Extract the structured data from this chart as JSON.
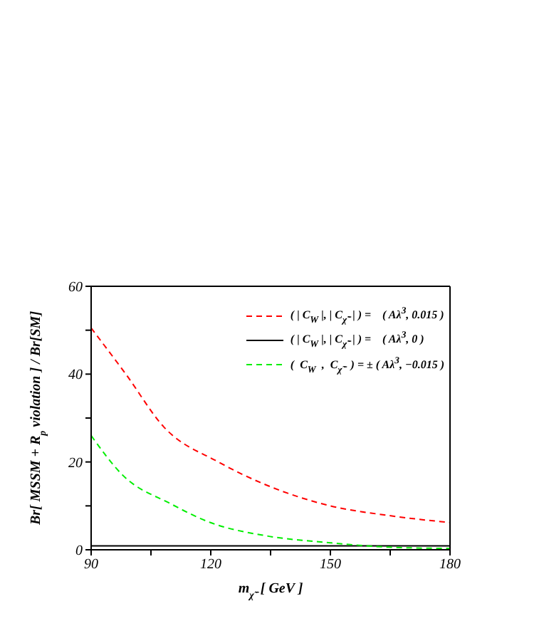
{
  "chart_data": {
    "type": "line",
    "xlabel": "m$_{χ̃⁻}$ [ GeV ]",
    "ylabel": "Br[ MSSM + R$_{p}$ violation ] / Br[SM]",
    "xlim": [
      90,
      180
    ],
    "xticks": [
      90,
      {
        "value": 105,
        "label": null
      },
      120,
      {
        "value": 135,
        "label": null
      },
      150,
      {
        "value": 165,
        "label": null
      },
      180
    ],
    "ylim": [
      0,
      60
    ],
    "yticks": [
      0,
      {
        "value": 10,
        "label": null
      },
      20,
      {
        "value": 30,
        "label": null
      },
      40,
      {
        "value": 50,
        "label": null
      },
      60
    ],
    "legend": "top right",
    "marker": "none",
    "series": [
      {
        "name": "( | C$_{W}$ |, | C$_{χ̃⁻}$ | ) =    ( Aλ$^{3}$, 0.015 )",
        "color": "#ff0000",
        "line_style": "dashed",
        "x": [
          90,
          98.7,
          108.2,
          121.9,
          133.8,
          150,
          164.6,
          180
        ],
        "values": [
          50.5,
          40,
          28,
          20,
          14.8,
          10,
          7.8,
          6.2
        ]
      },
      {
        "name": "( | C$_{W}$ |, | C$_{χ̃⁻}$ | ) =    ( Aλ$^{3}$, 0 )",
        "color": "#000000",
        "line_style": "solid",
        "x": [
          90,
          180
        ],
        "values": [
          0.9,
          0.9
        ]
      },
      {
        "name": "(  C$_{W}$  ,  C$_{χ̃⁻}$  ) = ± ( Aλ$^{3}$, −0.015 )",
        "color": "#00ee00",
        "line_style": "dashed",
        "x": [
          90,
          97.9,
          109.9,
          119.9,
          133.8,
          150,
          164.6,
          180
        ],
        "values": [
          26,
          17,
          10.5,
          6.2,
          3.2,
          1.6,
          0.6,
          0.3
        ]
      }
    ]
  }
}
